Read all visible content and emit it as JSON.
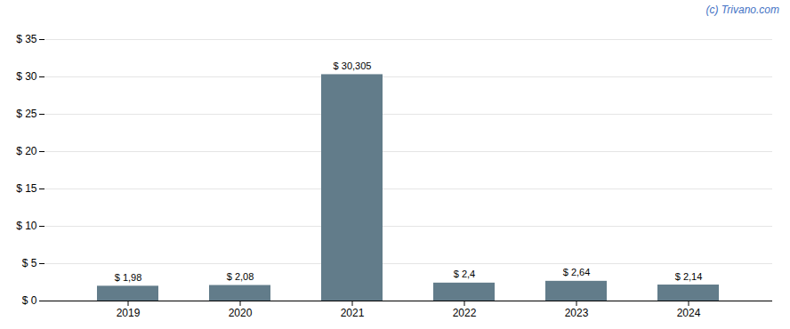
{
  "chart_data": {
    "type": "bar",
    "categories": [
      "2019",
      "2020",
      "2021",
      "2022",
      "2023",
      "2024"
    ],
    "values": [
      1.98,
      2.08,
      30.305,
      2.4,
      2.64,
      2.14
    ],
    "value_labels": [
      "$ 1,98",
      "$ 2,08",
      "$ 30,305",
      "$ 2,4",
      "$ 2,64",
      "$ 2,14"
    ],
    "color": "#627c8a",
    "ylim": [
      0,
      35
    ],
    "yticks": [
      {
        "value": 0,
        "label": "$ 0"
      },
      {
        "value": 5,
        "label": "$ 5"
      },
      {
        "value": 10,
        "label": "$ 10"
      },
      {
        "value": 15,
        "label": "$ 15"
      },
      {
        "value": 20,
        "label": "$ 20"
      },
      {
        "value": 25,
        "label": "$ 25"
      },
      {
        "value": 30,
        "label": "$ 30"
      },
      {
        "value": 35,
        "label": "$ 35"
      }
    ],
    "grid": true,
    "data_labels": true,
    "annotations": [
      "(c) Trivano.com"
    ]
  }
}
